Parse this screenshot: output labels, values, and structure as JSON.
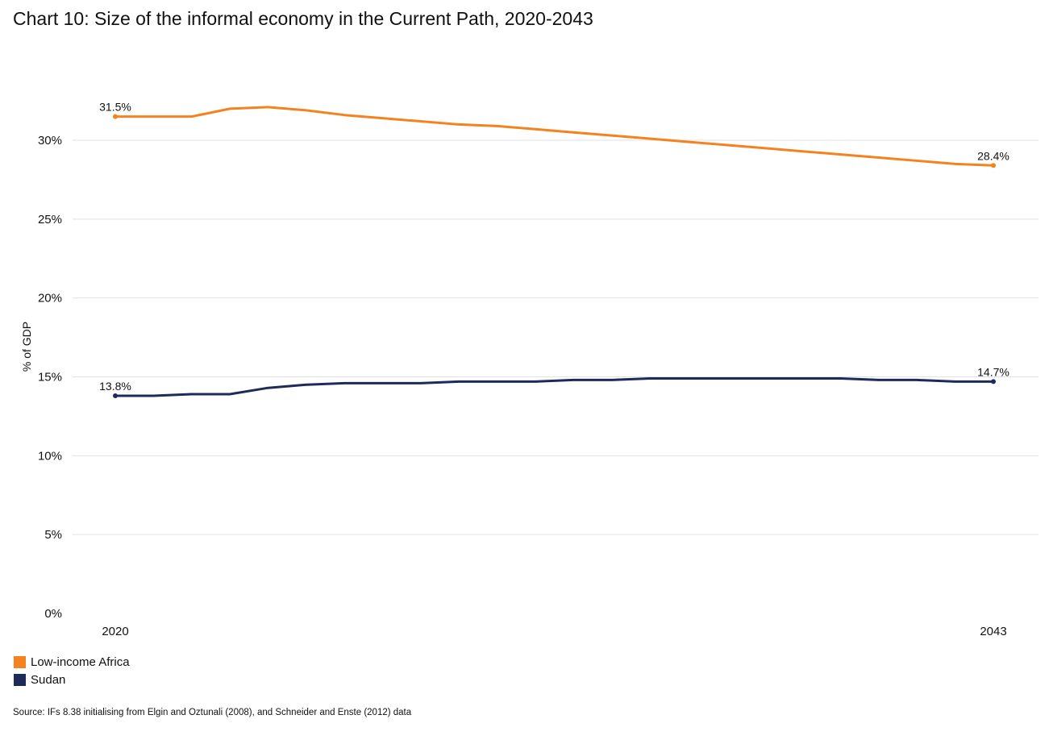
{
  "chart_data": {
    "type": "line",
    "title": "Chart 10: Size of the informal economy in the Current Path, 2020-2043",
    "xlabel": "",
    "ylabel": "% of GDP",
    "x": [
      2020,
      2021,
      2022,
      2023,
      2024,
      2025,
      2026,
      2027,
      2028,
      2029,
      2030,
      2031,
      2032,
      2033,
      2034,
      2035,
      2036,
      2037,
      2038,
      2039,
      2040,
      2041,
      2042,
      2043
    ],
    "x_tick_labels": [
      "2020",
      "2043"
    ],
    "ylim": [
      0,
      32
    ],
    "y_ticks": [
      0,
      5,
      10,
      15,
      20,
      25,
      30
    ],
    "y_tick_labels": [
      "0%",
      "5%",
      "10%",
      "15%",
      "20%",
      "25%",
      "30%"
    ],
    "grid": true,
    "legend_position": "bottom-left",
    "series": [
      {
        "name": "Low-income Africa",
        "color": "#F4821F",
        "values": [
          31.5,
          31.5,
          31.5,
          32.0,
          32.1,
          31.9,
          31.6,
          31.4,
          31.2,
          31.0,
          30.9,
          30.7,
          30.5,
          30.3,
          30.1,
          29.9,
          29.7,
          29.5,
          29.3,
          29.1,
          28.9,
          28.7,
          28.5,
          28.4
        ],
        "start_label": "31.5%",
        "end_label": "28.4%"
      },
      {
        "name": "Sudan",
        "color": "#1C2B5A",
        "values": [
          13.8,
          13.8,
          13.9,
          13.9,
          14.3,
          14.5,
          14.6,
          14.6,
          14.6,
          14.7,
          14.7,
          14.7,
          14.8,
          14.8,
          14.9,
          14.9,
          14.9,
          14.9,
          14.9,
          14.9,
          14.8,
          14.8,
          14.7,
          14.7
        ],
        "start_label": "13.8%",
        "end_label": "14.7%"
      }
    ]
  },
  "legend": {
    "items": [
      {
        "label": "Low-income Africa",
        "color": "#F4821F"
      },
      {
        "label": "Sudan",
        "color": "#1C2B5A"
      }
    ]
  },
  "source": "Source: IFs 8.38 initialising  from Elgin and Oztunali (2008), and Schneider and Enste (2012) data"
}
